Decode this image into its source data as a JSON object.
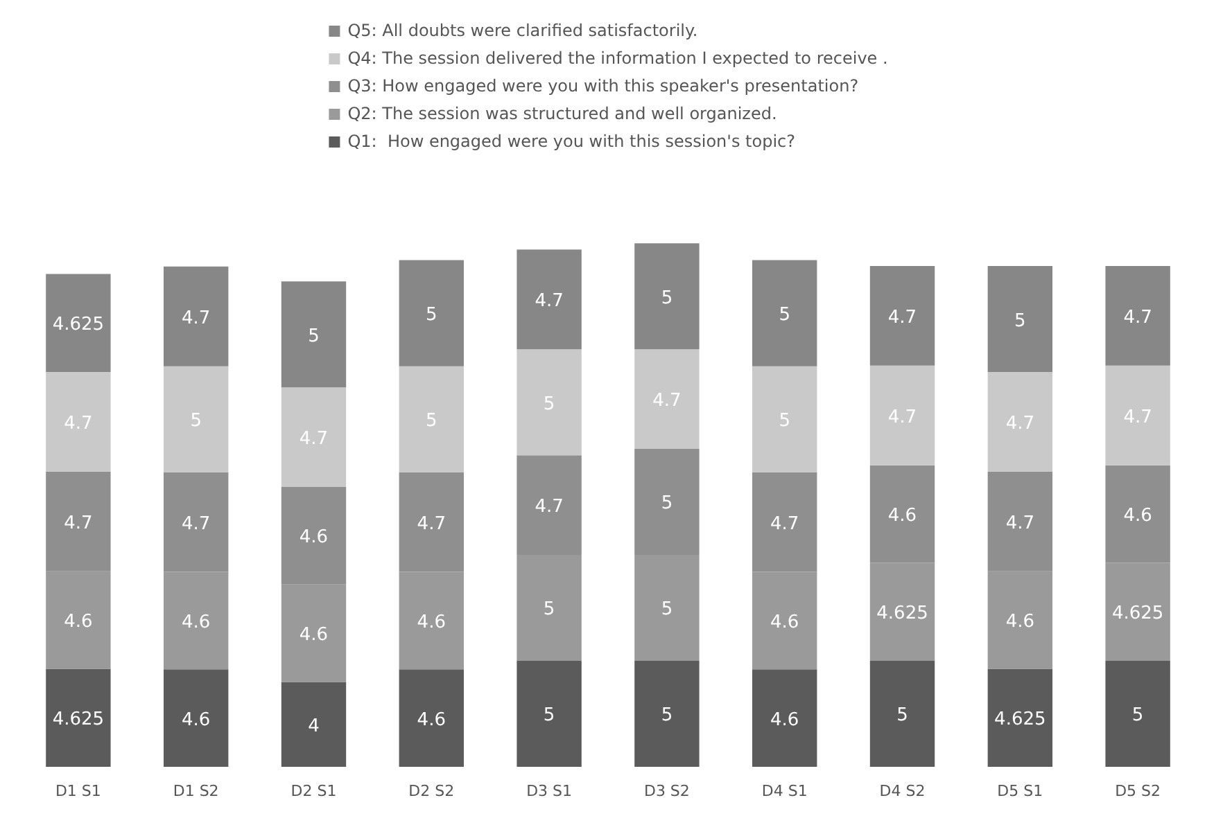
{
  "chart_data": {
    "type": "bar",
    "stacked": true,
    "data_labels": true,
    "legend": "top",
    "grid": false,
    "categories": [
      "D1 S1",
      "D1 S2",
      "D2 S1",
      "D2 S2",
      "D3 S1",
      "D3 S2",
      "D4 S1",
      "D4 S2",
      "D5 S1",
      "D5 S2"
    ],
    "series": [
      {
        "name": "Q1:  How engaged were you with this session's topic?",
        "color": "#5b5b5b",
        "values": [
          4.625,
          4.6,
          4,
          4.6,
          5,
          5,
          4.6,
          5,
          4.625,
          5
        ]
      },
      {
        "name": "Q2: The session was structured and well organized.",
        "color": "#9a9a9a",
        "values": [
          4.6,
          4.6,
          4.6,
          4.6,
          5,
          5,
          4.6,
          4.625,
          4.6,
          4.625
        ]
      },
      {
        "name": "Q3: How engaged were you with this speaker's presentation?",
        "color": "#8f8f8f",
        "values": [
          4.7,
          4.7,
          4.6,
          4.7,
          4.7,
          5,
          4.7,
          4.6,
          4.7,
          4.6
        ]
      },
      {
        "name": "Q4: The session delivered the information I expected to receive .",
        "color": "#c9c9c9",
        "values": [
          4.7,
          5,
          4.7,
          5,
          5,
          4.7,
          5,
          4.7,
          4.7,
          4.7
        ]
      },
      {
        "name": "Q5: All doubts were clarified satisfactorily.",
        "color": "#878787",
        "values": [
          4.625,
          4.7,
          5,
          5,
          4.7,
          5,
          5,
          4.7,
          5,
          4.7
        ]
      }
    ]
  }
}
